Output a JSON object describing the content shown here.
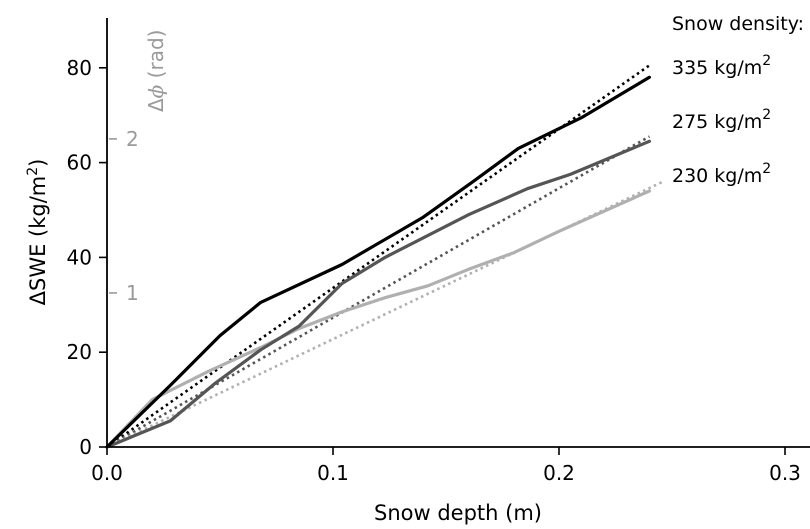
{
  "chart_data": {
    "type": "line",
    "xlabel": "Snow depth (m)",
    "ylabel": "ΔSWE (kg/m²)",
    "ylabel_main": "ΔSWE (kg/m",
    "ylabel_sup": "2",
    "ylabel_end": ")",
    "xlim": [
      0,
      0.3
    ],
    "ylim": [
      0,
      90
    ],
    "xticks": [
      0.0,
      0.1,
      0.2,
      0.3
    ],
    "xtick_labels": [
      "0.0",
      "0.1",
      "0.2",
      "0.3"
    ],
    "yticks": [
      0,
      20,
      40,
      60,
      80
    ],
    "ytick_labels": [
      "0",
      "20",
      "40",
      "60",
      "80"
    ],
    "secondary_axis": {
      "label": "Δϕ (rad)",
      "label_main": "Δ",
      "label_symbol": "ϕ",
      "label_unit": " (rad)",
      "ticks": [
        {
          "label": "1",
          "swe": 32.5
        },
        {
          "label": "2",
          "swe": 65.0
        }
      ],
      "color": "#9a9a9a"
    },
    "legend_title": "Snow density:",
    "grid": false,
    "series": [
      {
        "name": "335 kg/m2",
        "name_main": "335 kg/m",
        "name_sup": "2",
        "color": "#000000",
        "x": [
          0.0,
          0.028,
          0.05,
          0.068,
          0.104,
          0.14,
          0.162,
          0.182,
          0.21,
          0.24
        ],
        "y": [
          0,
          13,
          23.5,
          30.5,
          38.5,
          48.5,
          56,
          63,
          69.5,
          78
        ]
      },
      {
        "name": "275 kg/m2",
        "name_main": "275 kg/m",
        "name_sup": "2",
        "color": "#555555",
        "x": [
          0.0,
          0.028,
          0.048,
          0.068,
          0.085,
          0.104,
          0.123,
          0.16,
          0.186,
          0.205,
          0.24
        ],
        "y": [
          0,
          5.5,
          13.5,
          20.5,
          25.5,
          34.5,
          40,
          49,
          54.5,
          57.5,
          64.5
        ]
      },
      {
        "name": "230 kg/m2",
        "name_main": "230 kg/m",
        "name_sup": "2",
        "color": "#b0b0b0",
        "x": [
          0.0,
          0.02,
          0.045,
          0.068,
          0.085,
          0.104,
          0.123,
          0.142,
          0.16,
          0.18,
          0.2,
          0.24
        ],
        "y": [
          0,
          10,
          16,
          21,
          25,
          28.5,
          31.5,
          34,
          37.5,
          41,
          45.5,
          54
        ]
      }
    ],
    "fit_lines": [
      {
        "color": "#000000",
        "x": [
          0.0,
          0.24
        ],
        "y": [
          0,
          80.5
        ]
      },
      {
        "color": "#555555",
        "x": [
          0.0,
          0.24
        ],
        "y": [
          0,
          65.5
        ]
      },
      {
        "color": "#b0b0b0",
        "x": [
          0.0,
          0.246
        ],
        "y": [
          0,
          56
        ]
      }
    ]
  }
}
